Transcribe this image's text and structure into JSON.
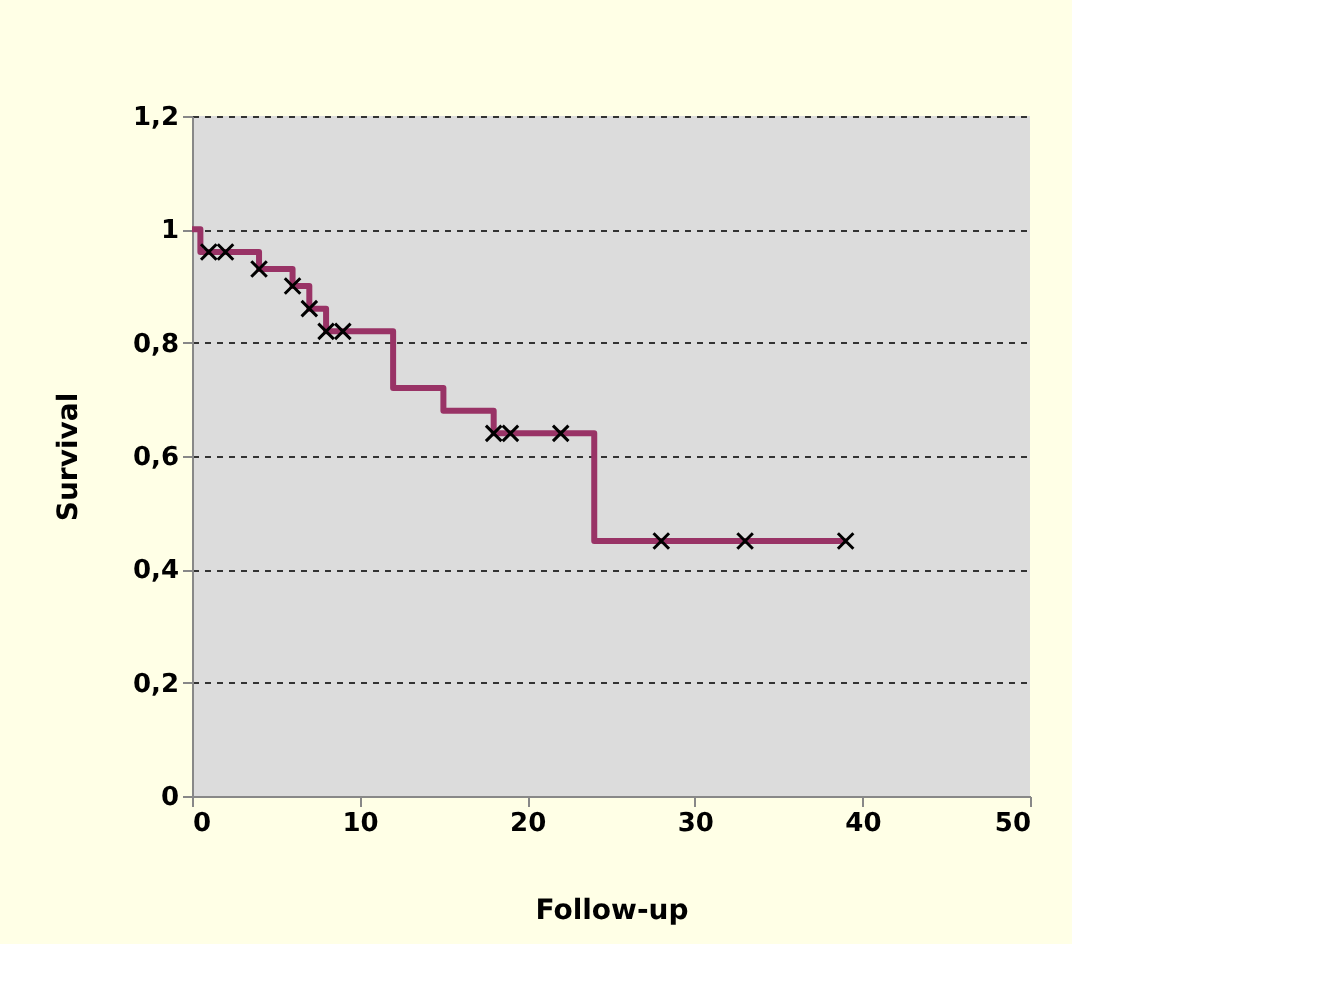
{
  "chart_data": {
    "type": "step",
    "xlabel": "Follow-up",
    "ylabel": "Survival",
    "xlim": [
      0,
      50
    ],
    "xticks": [
      0,
      10,
      20,
      30,
      40,
      50
    ],
    "ylim": [
      0,
      1.2
    ],
    "yticks": [
      0,
      {
        "value": 0.2,
        "label": "0,2"
      },
      {
        "value": 0.4,
        "label": "0,4"
      },
      {
        "value": 0.6,
        "label": "0,6"
      },
      {
        "value": 0.8,
        "label": "0,8"
      },
      1,
      {
        "value": 1.2,
        "label": "1,2"
      }
    ],
    "grid": "y",
    "series": [
      {
        "color": "#993366",
        "marker": "none",
        "x": [
          0,
          0.5,
          4,
          6,
          7,
          8,
          12,
          15,
          18,
          24,
          39
        ],
        "values": [
          1,
          0.96,
          0.93,
          0.9,
          0.86,
          0.82,
          0.72,
          0.68,
          0.64,
          0.45,
          0.45
        ]
      },
      {
        "type": "scatter",
        "color": "#000000",
        "marker": "cross",
        "x": [
          1,
          2,
          4,
          6,
          7,
          8,
          9,
          18,
          19,
          22,
          28,
          33,
          39
        ],
        "values": [
          0.96,
          0.96,
          0.93,
          0.9,
          0.86,
          0.82,
          0.82,
          0.64,
          0.64,
          0.64,
          0.45,
          0.45,
          0.45
        ]
      }
    ]
  }
}
